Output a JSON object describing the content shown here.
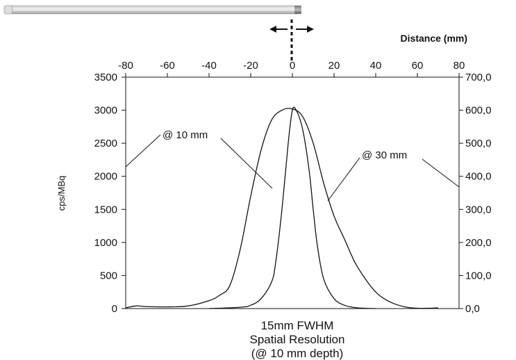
{
  "chart_data": {
    "type": "line",
    "title": "",
    "xlabel": "Distance (mm)",
    "ylabel": "cps/MBq",
    "xlim": [
      -80,
      80
    ],
    "ylim": [
      0,
      3500
    ],
    "y2lim": [
      0,
      700
    ],
    "x_ticks": [
      "-80",
      "-60",
      "-40",
      "-20",
      "0",
      "20",
      "40",
      "60",
      "80"
    ],
    "y_ticks": [
      "0",
      "500",
      "1000",
      "1500",
      "2000",
      "2500",
      "3000",
      "3500"
    ],
    "y2_ticks": [
      "0,0",
      "100,0",
      "200,0",
      "300,0",
      "400,0",
      "500,0",
      "600,0",
      "700,0"
    ],
    "grid": false,
    "series": [
      {
        "x": [
          -40,
          -25,
          -20,
          -15,
          -10,
          -8,
          -5,
          -2,
          0,
          2,
          5,
          8,
          10,
          12,
          15,
          20,
          25,
          30,
          35,
          40
        ],
        "y": [
          0,
          20,
          50,
          150,
          400,
          700,
          1500,
          2500,
          3000,
          2990,
          2700,
          2100,
          1500,
          950,
          450,
          150,
          50,
          15,
          5,
          0
        ]
      },
      {
        "x": [
          -80,
          -75,
          -70,
          -60,
          -50,
          -40,
          -35,
          -30,
          -25,
          -20,
          -15,
          -10,
          -5,
          0,
          5,
          10,
          15,
          20,
          25,
          30,
          35,
          40,
          45,
          50,
          55,
          60,
          65,
          70
        ],
        "y": [
          10,
          40,
          30,
          25,
          40,
          120,
          200,
          350,
          900,
          1700,
          2400,
          2850,
          3000,
          3020,
          2900,
          2500,
          1900,
          1400,
          1050,
          700,
          450,
          250,
          130,
          60,
          20,
          5,
          5,
          10
        ]
      }
    ],
    "annotations": [
      "@ 10 mm",
      "@ 30 mm"
    ],
    "caption": [
      "15mm FWHM",
      "Spatial Resolution",
      "(@ 10 mm depth)"
    ]
  }
}
